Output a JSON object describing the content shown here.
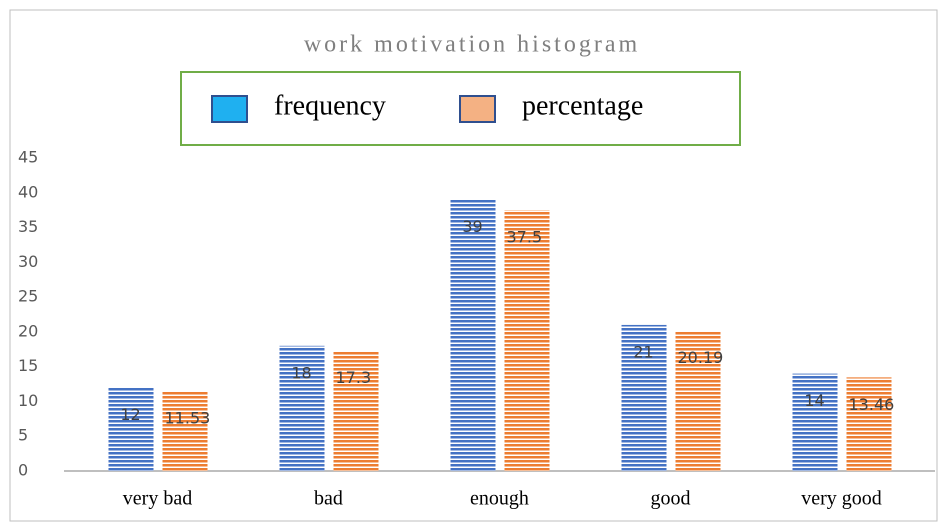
{
  "chart_data": {
    "type": "bar",
    "title": "work motivation histogram",
    "categories": [
      "very bad",
      "bad",
      "enough",
      "good",
      "very good"
    ],
    "series": [
      {
        "name": "frequency",
        "color": "#4472c4",
        "values": [
          12,
          18,
          39,
          21,
          14
        ],
        "value_labels": [
          "12",
          "18",
          "39",
          "21",
          "14"
        ]
      },
      {
        "name": "percentage",
        "color": "#ed7d31",
        "values": [
          11.53,
          17.3,
          37.5,
          20.19,
          13.46
        ],
        "value_labels": [
          "11.53",
          "17.3",
          "37.5",
          "20.19",
          "13.46"
        ]
      }
    ],
    "ylim": [
      0,
      45
    ],
    "yticks": [
      0,
      5,
      10,
      15,
      20,
      25,
      30,
      35,
      40,
      45
    ],
    "legend": "top"
  }
}
